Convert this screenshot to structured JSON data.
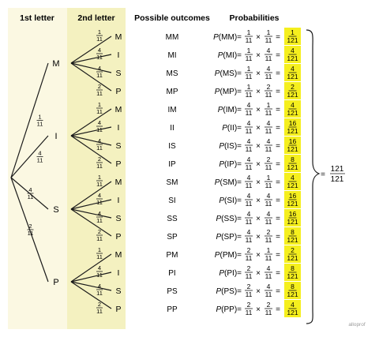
{
  "headers": {
    "first_letter": "1st letter",
    "second_letter": "2nd letter",
    "outcomes": "Possible outcomes",
    "probabilities": "Probabilities"
  },
  "colors": {
    "first_column_bg": "#fbf8e2",
    "second_column_bg": "#f4f1c0",
    "highlight": "#f5ef1e",
    "line": "#1a1a1a"
  },
  "first_level": [
    {
      "letter": "M",
      "num": "1",
      "den": "11"
    },
    {
      "letter": "I",
      "num": "4",
      "den": "11"
    },
    {
      "letter": "S",
      "num": "4",
      "den": "11"
    },
    {
      "letter": "P",
      "num": "2",
      "den": "11"
    }
  ],
  "second_level_branches": [
    {
      "letter": "M",
      "num": "1",
      "den": "11"
    },
    {
      "letter": "I",
      "num": "4",
      "den": "11"
    },
    {
      "letter": "S",
      "num": "4",
      "den": "11"
    },
    {
      "letter": "P",
      "num": "2",
      "den": "11"
    }
  ],
  "rows": [
    {
      "outcome": "MM",
      "p1n": "1",
      "p2n": "1",
      "rn": "1",
      "den": "11",
      "rden": "121"
    },
    {
      "outcome": "MI",
      "p1n": "1",
      "p2n": "4",
      "rn": "4",
      "den": "11",
      "rden": "121"
    },
    {
      "outcome": "MS",
      "p1n": "1",
      "p2n": "4",
      "rn": "4",
      "den": "11",
      "rden": "121"
    },
    {
      "outcome": "MP",
      "p1n": "1",
      "p2n": "2",
      "rn": "2",
      "den": "11",
      "rden": "121"
    },
    {
      "outcome": "IM",
      "p1n": "4",
      "p2n": "1",
      "rn": "4",
      "den": "11",
      "rden": "121"
    },
    {
      "outcome": "II",
      "p1n": "4",
      "p2n": "4",
      "rn": "16",
      "den": "11",
      "rden": "121"
    },
    {
      "outcome": "IS",
      "p1n": "4",
      "p2n": "4",
      "rn": "16",
      "den": "11",
      "rden": "121"
    },
    {
      "outcome": "IP",
      "p1n": "4",
      "p2n": "2",
      "rn": "8",
      "den": "11",
      "rden": "121"
    },
    {
      "outcome": "SM",
      "p1n": "4",
      "p2n": "1",
      "rn": "4",
      "den": "11",
      "rden": "121"
    },
    {
      "outcome": "SI",
      "p1n": "4",
      "p2n": "4",
      "rn": "16",
      "den": "11",
      "rden": "121"
    },
    {
      "outcome": "SS",
      "p1n": "4",
      "p2n": "4",
      "rn": "16",
      "den": "11",
      "rden": "121"
    },
    {
      "outcome": "SP",
      "p1n": "4",
      "p2n": "2",
      "rn": "8",
      "den": "11",
      "rden": "121"
    },
    {
      "outcome": "PM",
      "p1n": "2",
      "p2n": "1",
      "rn": "2",
      "den": "11",
      "rden": "121"
    },
    {
      "outcome": "PI",
      "p1n": "2",
      "p2n": "4",
      "rn": "8",
      "den": "11",
      "rden": "121"
    },
    {
      "outcome": "PS",
      "p1n": "2",
      "p2n": "4",
      "rn": "8",
      "den": "11",
      "rden": "121"
    },
    {
      "outcome": "PP",
      "p1n": "2",
      "p2n": "2",
      "rn": "4",
      "den": "11",
      "rden": "121"
    }
  ],
  "symbols": {
    "times": "×",
    "equals": "=",
    "prob_prefix": "P",
    "open_paren": "(",
    "close_paren": ")"
  },
  "total": {
    "equals": "=",
    "num": "121",
    "den": "121"
  },
  "watermark": "alloprof"
}
